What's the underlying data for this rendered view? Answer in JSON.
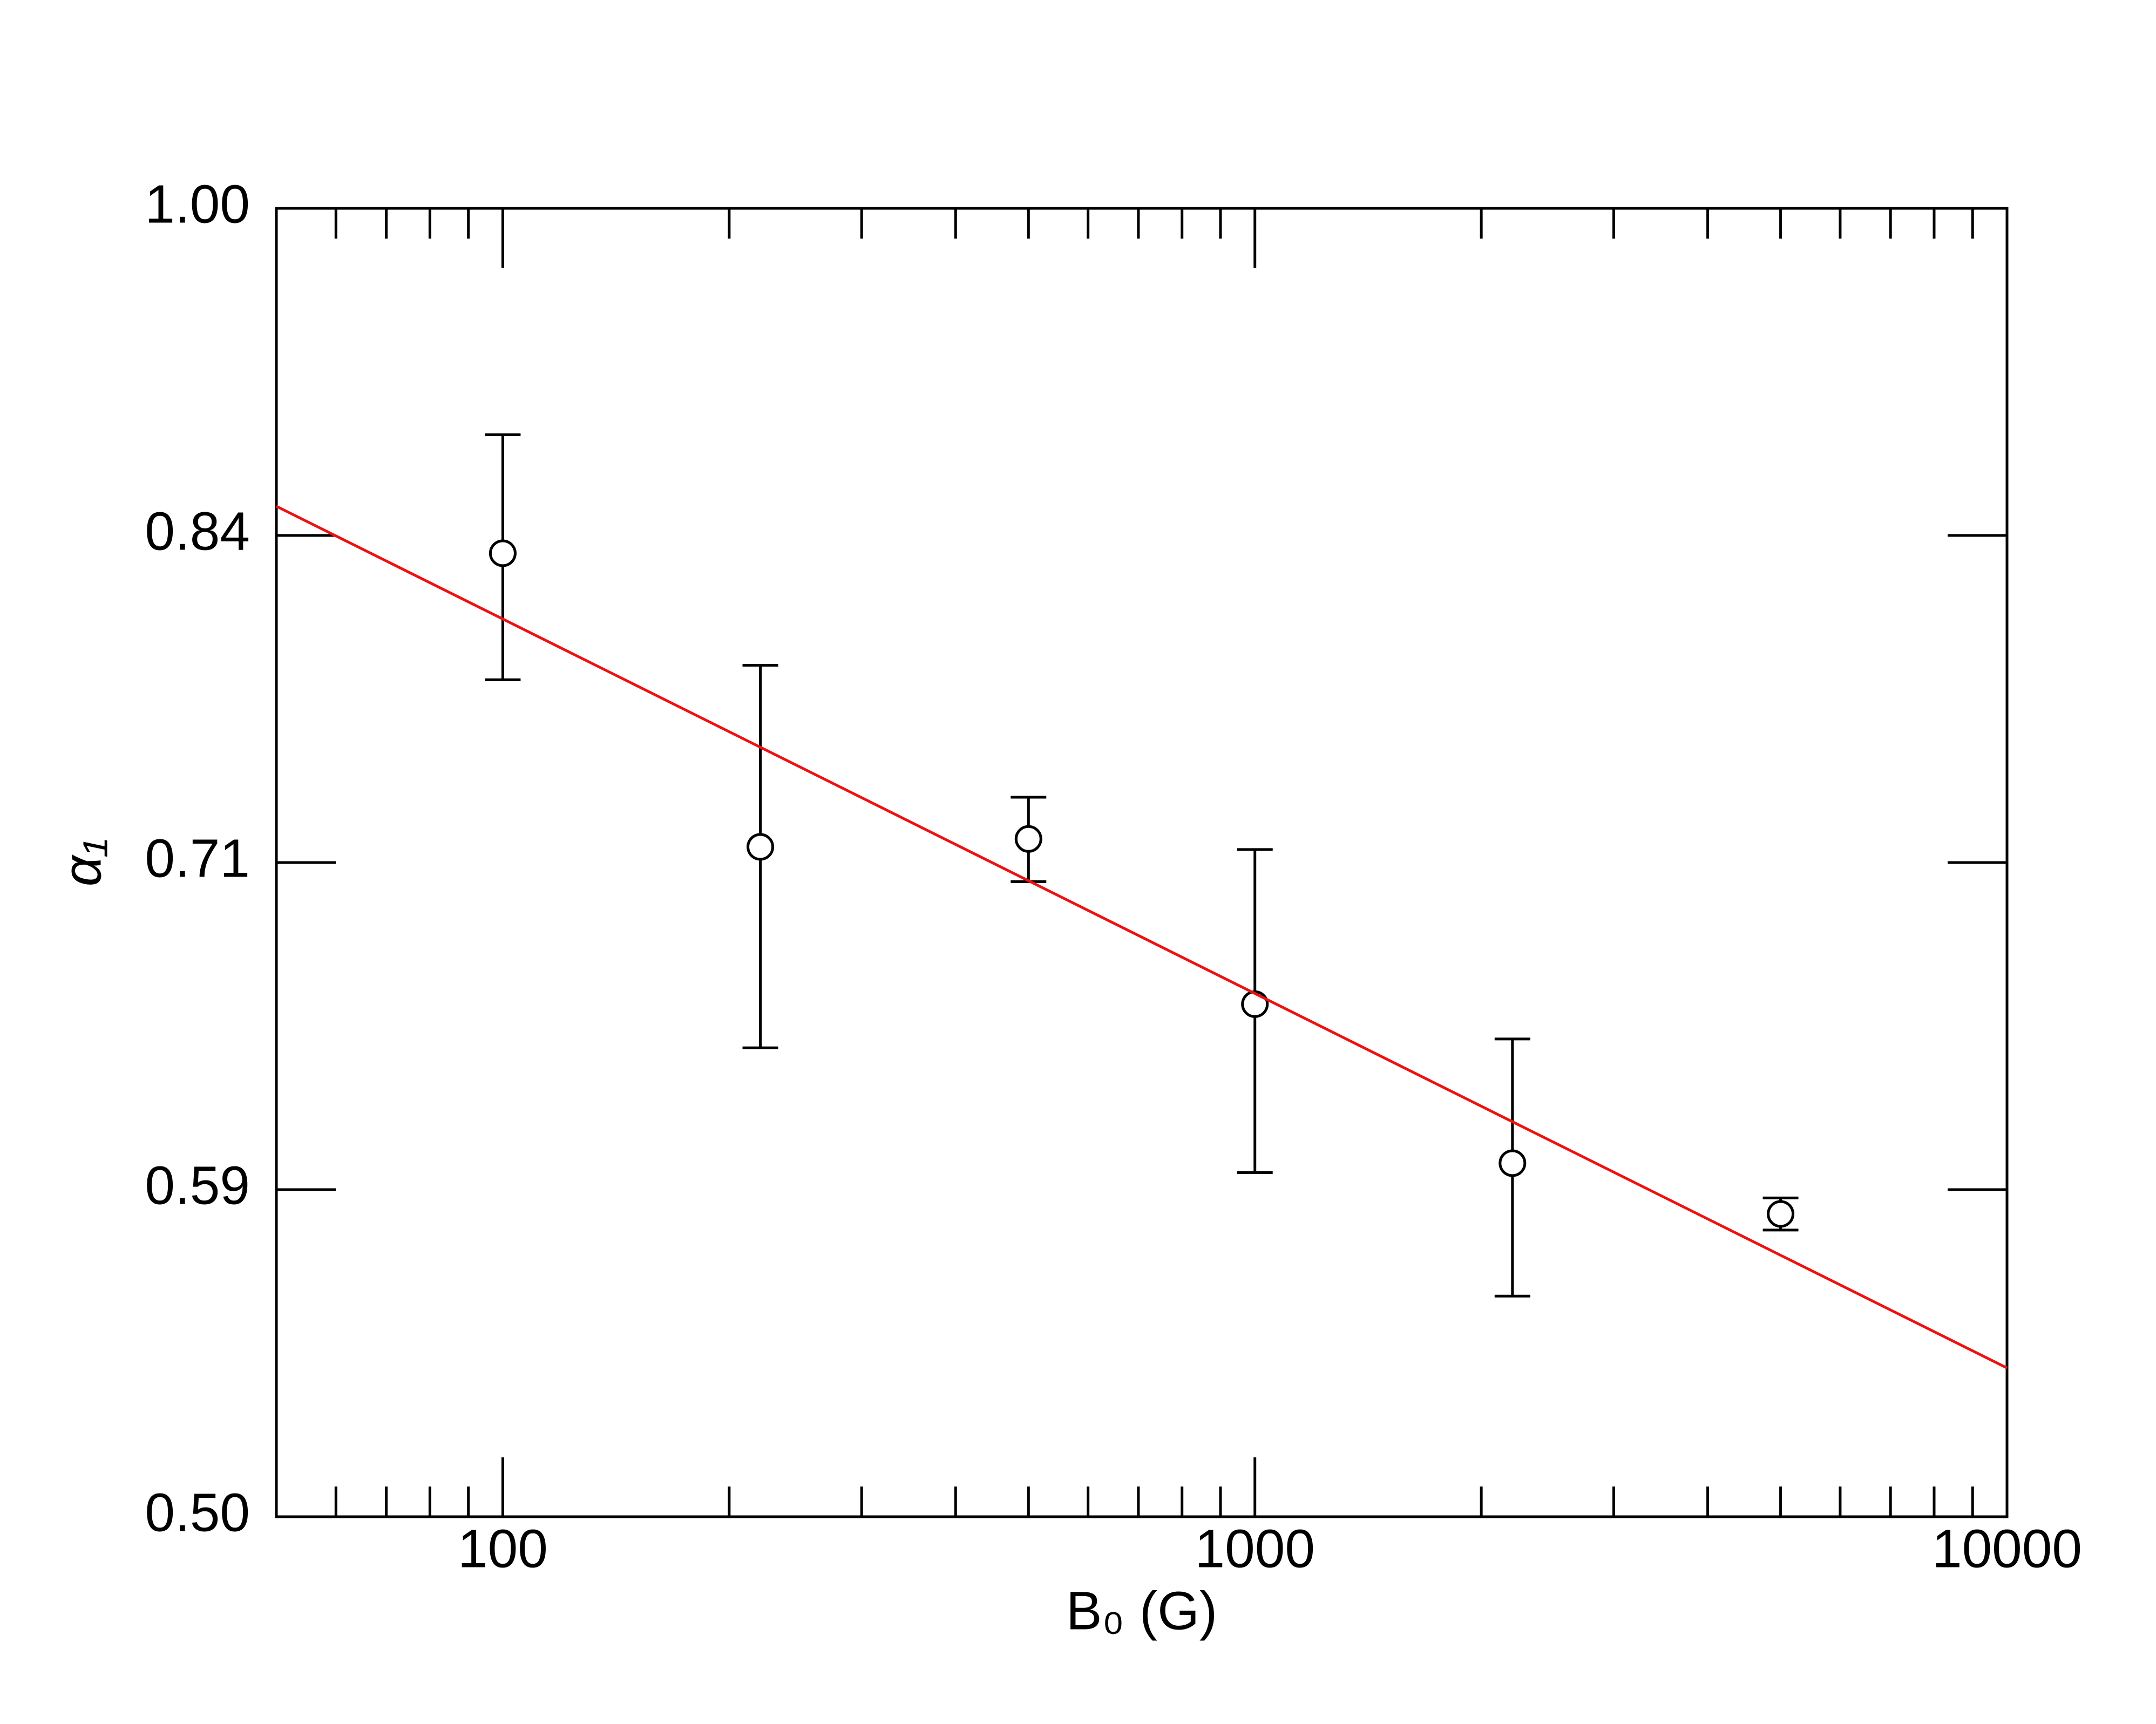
{
  "chart_data": {
    "type": "scatter",
    "xlabel": "B₀ (G)",
    "ylabel": "α₁",
    "xlog": true,
    "ylog": true,
    "xlim": [
      50,
      10000
    ],
    "ylim": [
      0.5,
      1
    ],
    "xticks": [
      100,
      1000,
      10000
    ],
    "xminorticks": [
      60,
      70,
      80,
      90,
      200,
      300,
      400,
      500,
      600,
      700,
      800,
      900,
      2000,
      3000,
      4000,
      5000,
      6000,
      7000,
      8000,
      9000
    ],
    "yticks": [
      {
        "value": 0.5,
        "label": "0.50"
      },
      {
        "value": 0.5946,
        "label": "0.59"
      },
      {
        "value": 0.7071,
        "label": "0.71"
      },
      {
        "value": 0.8409,
        "label": "0.84"
      },
      {
        "value": 1,
        "label": "1.00"
      }
    ],
    "series": [
      {
        "type": "scatter",
        "color": "#000000",
        "x": [
          100,
          220,
          500,
          1000,
          2200,
          5000
        ],
        "values": [
          0.833,
          0.713,
          0.716,
          0.656,
          0.603,
          0.587
        ],
        "errors": [
          0.054,
          0.072,
          0.016,
          0.056,
          0.041,
          0.005
        ]
      },
      {
        "type": "line",
        "color": "#ee1111",
        "x": [
          50,
          10000
        ],
        "values": [
          0.854,
          0.541
        ]
      }
    ]
  }
}
